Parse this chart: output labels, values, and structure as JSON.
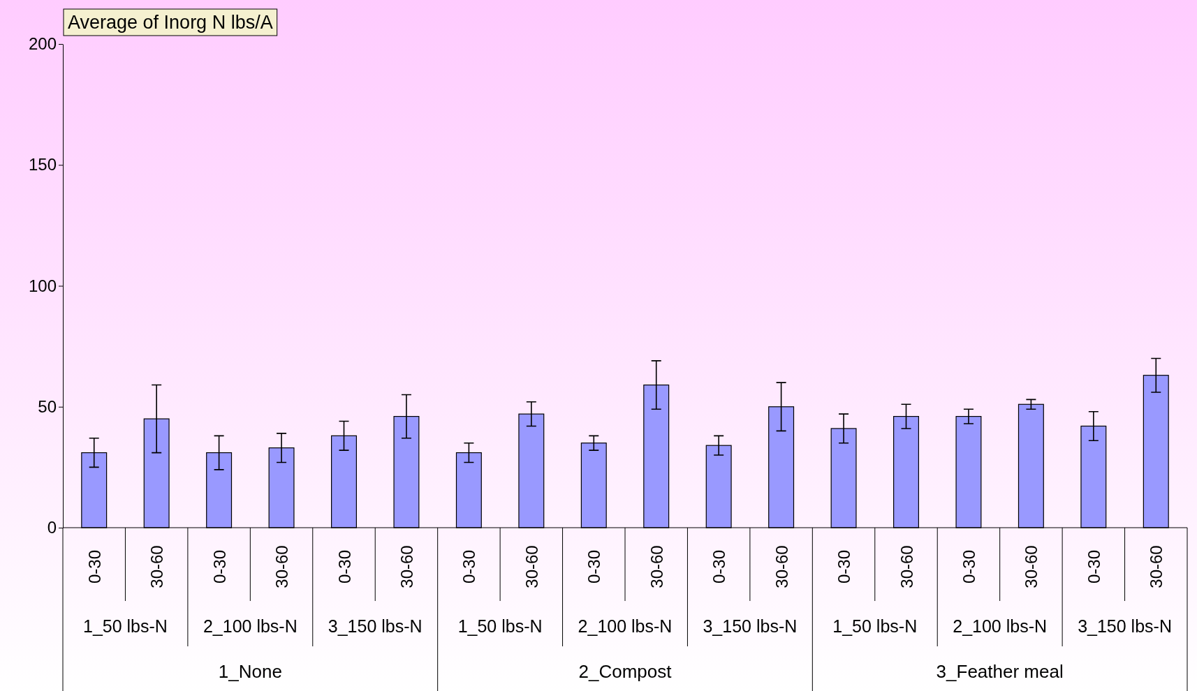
{
  "chart_data": {
    "type": "bar",
    "title": "Average of Inorg N lbs/A",
    "categories": [
      "0-30",
      "30-60",
      "0-30",
      "30-60",
      "0-30",
      "30-60",
      "0-30",
      "30-60",
      "0-30",
      "30-60",
      "0-30",
      "30-60",
      "0-30",
      "30-60",
      "0-30",
      "30-60",
      "0-30",
      "30-60"
    ],
    "values": [
      31,
      45,
      31,
      33,
      38,
      46,
      31,
      47,
      35,
      59,
      34,
      50,
      41,
      46,
      46,
      51,
      42,
      63
    ],
    "errors": [
      6,
      14,
      7,
      6,
      6,
      9,
      4,
      5,
      3,
      10,
      4,
      10,
      6,
      5,
      3,
      2,
      6,
      7
    ],
    "color": "#9999ff",
    "ylim": [
      0,
      200
    ],
    "yticks": [
      0,
      50,
      100,
      150,
      200
    ],
    "grid": false,
    "annotations": [
      "1_50 lbs-N",
      "2_100 lbs-N",
      "3_150 lbs-N",
      "1_50 lbs-N",
      "2_100 lbs-N",
      "3_150 lbs-N",
      "1_50 lbs-N",
      "2_100 lbs-N",
      "3_150 lbs-N",
      "1_None",
      "2_Compost",
      "3_Feather meal"
    ]
  }
}
